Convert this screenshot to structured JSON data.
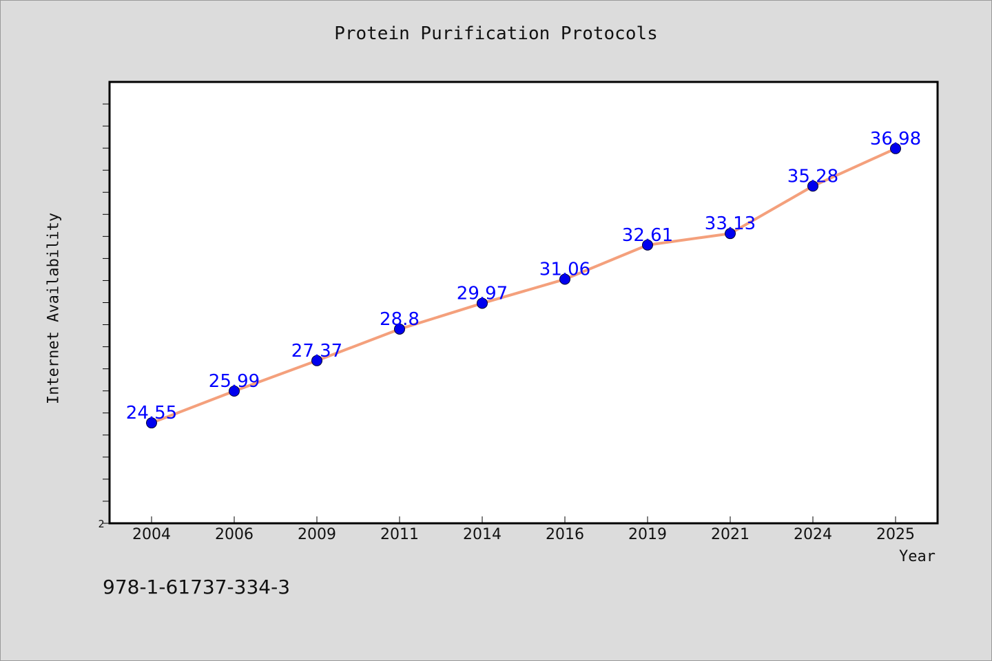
{
  "chart_data": {
    "type": "line",
    "title": "Protein Purification Protocols",
    "xlabel": "Year",
    "ylabel": "Internet Availability",
    "categories": [
      "2004",
      "2006",
      "2009",
      "2011",
      "2014",
      "2016",
      "2019",
      "2021",
      "2024",
      "2025"
    ],
    "series": [
      {
        "values": [
          24.55,
          25.99,
          27.37,
          28.8,
          29.97,
          31.06,
          32.61,
          33.13,
          35.28,
          36.98
        ],
        "labels": [
          "24.55",
          "25.99",
          "27.37",
          "28.8",
          "29.97",
          "31.06",
          "32.61",
          "33.13",
          "35.28",
          "36.98"
        ]
      }
    ],
    "ylim": [
      20,
      40
    ],
    "y_tick_labels_shown": [
      "2"
    ],
    "grid": false,
    "colors": {
      "line": "#f4a07c",
      "marker": "#0000ee",
      "data_label": "#0000ff",
      "plot_background": "#ffffff",
      "page_background": "#dcdcdc"
    }
  },
  "footnote": "978-1-61737-334-3"
}
